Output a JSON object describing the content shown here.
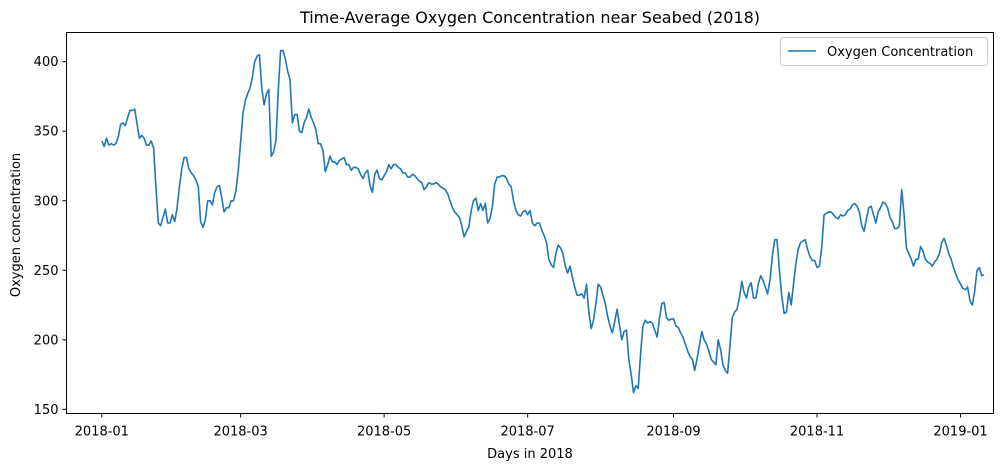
{
  "chart_data": {
    "type": "line",
    "title": "Time-Average Oxygen Concentration near Seabed (2018)",
    "xlabel": "Days in 2018",
    "ylabel": "Oxygen concentration",
    "xlim": [
      "2017-12-17",
      "2019-01-15"
    ],
    "ylim": [
      147,
      421
    ],
    "x_ticks": [
      "2018-01",
      "2018-03",
      "2018-05",
      "2018-07",
      "2018-09",
      "2018-11",
      "2019-01"
    ],
    "y_ticks": [
      150,
      200,
      250,
      300,
      350,
      400
    ],
    "grid": false,
    "legend": {
      "position": "top-right",
      "entries": [
        "Oxygen Concentration"
      ]
    },
    "series": [
      {
        "name": "Oxygen Concentration",
        "color": "#1f77b4",
        "x_start": "2018-01-01",
        "x_step_days": 1,
        "values": [
          343,
          339,
          345,
          340,
          341,
          340,
          341,
          346,
          355,
          356,
          354,
          360,
          365,
          365,
          366,
          355,
          345,
          347,
          345,
          340,
          340,
          343,
          338,
          310,
          284,
          282,
          288,
          294,
          284,
          284,
          290,
          285,
          295,
          310,
          323,
          331,
          331,
          323,
          320,
          318,
          315,
          310,
          285,
          281,
          286,
          300,
          300,
          297,
          306,
          310,
          311,
          302,
          292,
          295,
          295,
          300,
          300,
          307,
          322,
          342,
          363,
          372,
          377,
          381,
          389,
          400,
          404,
          405,
          381,
          369,
          377,
          380,
          332,
          335,
          343,
          380,
          408,
          408,
          402,
          393,
          387,
          356,
          362,
          362,
          350,
          349,
          356,
          360,
          366,
          360,
          356,
          351,
          341,
          341,
          336,
          321,
          326,
          332,
          328,
          328,
          326,
          329,
          330,
          331,
          326,
          326,
          322,
          324,
          324,
          323,
          319,
          316,
          320,
          322,
          311,
          306,
          319,
          322,
          316,
          315,
          318,
          321,
          326,
          323,
          326,
          326,
          324,
          323,
          320,
          320,
          317,
          317,
          319,
          318,
          316,
          314,
          313,
          308,
          310,
          313,
          312,
          312,
          313,
          312,
          310,
          309,
          308,
          305,
          300,
          295,
          292,
          290,
          288,
          282,
          274,
          278,
          281,
          293,
          300,
          302,
          293,
          298,
          293,
          298,
          284,
          287,
          296,
          312,
          317,
          317,
          318,
          318,
          316,
          312,
          310,
          300,
          293,
          290,
          289,
          292,
          293,
          290,
          293,
          284,
          282,
          284,
          284,
          279,
          275,
          270,
          258,
          254,
          252,
          262,
          268,
          266,
          262,
          253,
          248,
          253,
          245,
          238,
          232,
          232,
          233,
          230,
          240,
          220,
          208,
          214,
          226,
          240,
          238,
          232,
          226,
          217,
          210,
          205,
          213,
          222,
          211,
          200,
          206,
          207,
          186,
          175,
          162,
          167,
          165,
          190,
          210,
          214,
          212,
          213,
          212,
          207,
          202,
          215,
          226,
          227,
          216,
          214,
          215,
          215,
          210,
          209,
          205,
          202,
          197,
          192,
          188,
          186,
          178,
          186,
          196,
          206,
          200,
          197,
          192,
          186,
          184,
          182,
          200,
          193,
          182,
          178,
          176,
          196,
          216,
          220,
          222,
          230,
          242,
          234,
          230,
          238,
          241,
          230,
          230,
          240,
          246,
          243,
          238,
          233,
          243,
          260,
          272,
          272,
          250,
          232,
          219,
          220,
          234,
          225,
          240,
          255,
          265,
          270,
          271,
          272,
          265,
          260,
          257,
          257,
          252,
          253,
          266,
          290,
          291,
          292,
          292,
          290,
          288,
          287,
          290,
          289,
          290,
          293,
          294,
          297,
          298,
          296,
          292,
          282,
          278,
          287,
          295,
          296,
          290,
          284,
          292,
          295,
          299,
          298,
          295,
          288,
          285,
          280,
          280,
          282,
          308,
          290,
          266,
          262,
          258,
          253,
          258,
          258,
          267,
          264,
          258,
          256,
          255,
          253,
          256,
          258,
          262,
          270,
          273,
          268,
          262,
          258,
          252,
          247,
          243,
          240,
          237,
          236,
          238,
          228,
          225,
          235,
          250,
          252,
          246,
          247
        ]
      }
    ]
  }
}
